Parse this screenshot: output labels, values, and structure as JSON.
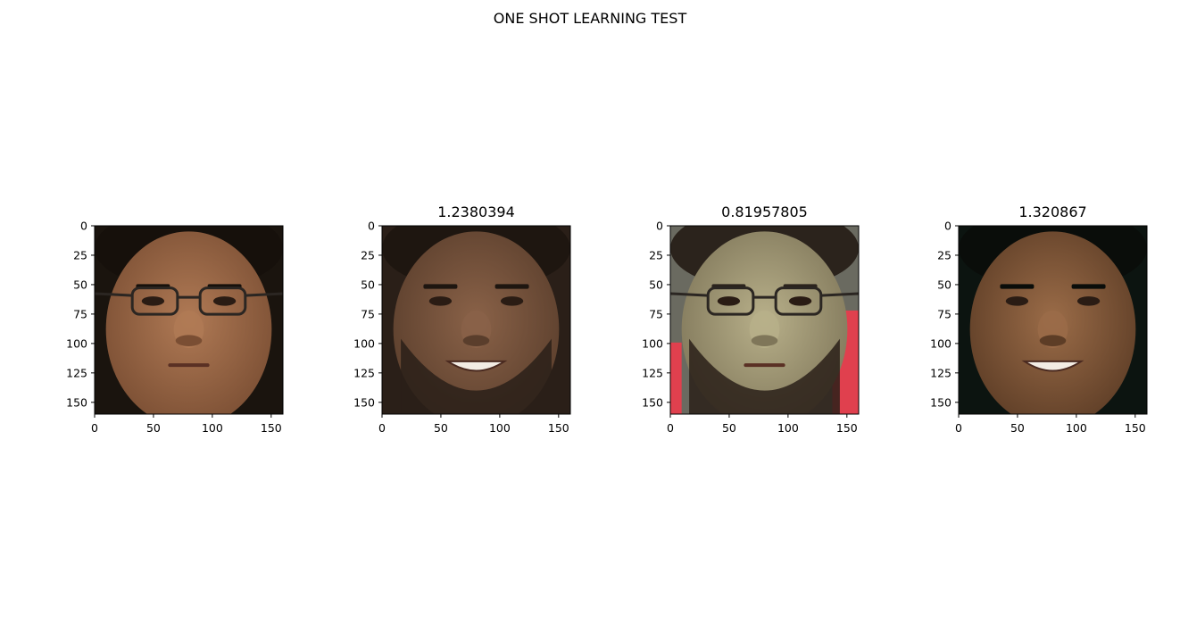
{
  "figure": {
    "title": "ONE SHOT LEARNING TEST"
  },
  "panels": [
    {
      "id": "anchor",
      "title": "",
      "skin": "#b07a55",
      "skin_shadow": "#7a4e33",
      "background": "#1a140e",
      "hair": "#16100b",
      "glasses": true,
      "beard": false,
      "side_panel": "",
      "mouth_open": false
    },
    {
      "id": "candidate-1",
      "title": "1.2380394",
      "skin": "#8a6248",
      "skin_shadow": "#5a3e2c",
      "background": "#2a1f18",
      "hair": "#1e1610",
      "glasses": false,
      "beard": true,
      "side_panel": "",
      "mouth_open": true
    },
    {
      "id": "candidate-2",
      "title": "0.81957805",
      "skin": "#b8b08a",
      "skin_shadow": "#7f7659",
      "background": "#6a6a60",
      "hair": "#2b231c",
      "glasses": true,
      "beard": true,
      "side_panel": "#e0404e",
      "mouth_open": false
    },
    {
      "id": "candidate-3",
      "title": "1.320867",
      "skin": "#9b6c48",
      "skin_shadow": "#5d3d26",
      "background": "#0c1410",
      "hair": "#0a0d0a",
      "glasses": false,
      "beard": false,
      "side_panel": "",
      "mouth_open": true
    }
  ],
  "axes": {
    "y_ticks": [
      "0",
      "25",
      "50",
      "75",
      "100",
      "125",
      "150"
    ],
    "x_ticks": [
      "0",
      "50",
      "100",
      "150"
    ],
    "y_values": [
      0,
      25,
      50,
      75,
      100,
      125,
      150
    ],
    "x_values": [
      0,
      50,
      100,
      150
    ],
    "extent": 160
  }
}
